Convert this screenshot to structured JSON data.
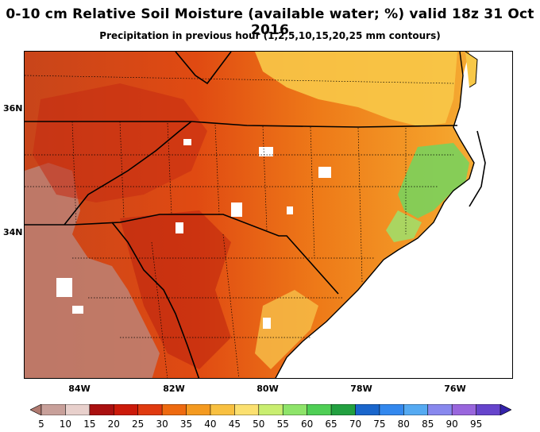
{
  "header": {
    "title": "0-10 cm Relative Soil Moisture (available water; %) valid 18z 31 Oct 2016",
    "subtitle": "Precipitation in previous hour (1,2,5,10,15,20,25 mm contours)"
  },
  "axes": {
    "lat_labels": [
      "36N",
      "34N"
    ],
    "lon_labels": [
      "84W",
      "82W",
      "80W",
      "78W",
      "76W"
    ]
  },
  "colorbar": {
    "labels": [
      "5",
      "10",
      "15",
      "20",
      "25",
      "30",
      "35",
      "40",
      "45",
      "50",
      "55",
      "60",
      "65",
      "70",
      "75",
      "80",
      "85",
      "90",
      "95"
    ],
    "colors": [
      "#b07a70",
      "#c8a09a",
      "#e8d0cc",
      "#aa1010",
      "#cc1a0a",
      "#e03a10",
      "#ee6a10",
      "#f49a20",
      "#f8c040",
      "#fbe070",
      "#c9ee70",
      "#8ee46a",
      "#4fcf55",
      "#22a040",
      "#1a66cc",
      "#3388ee",
      "#55aaf2",
      "#8888ee",
      "#9966dd",
      "#6644cc",
      "#3322aa"
    ]
  },
  "map": {
    "ocean_color": "#ffffff",
    "dominant_colors": [
      "#ee6a10",
      "#e03a10",
      "#f49a20",
      "#f8c040",
      "#8ee46a"
    ]
  }
}
